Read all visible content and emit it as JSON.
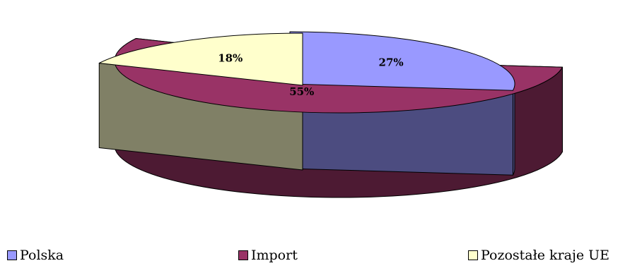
{
  "chart_data": {
    "type": "pie",
    "style": "3d-exploded",
    "slices": [
      {
        "label": "Polska",
        "value": 27,
        "display": "27%",
        "color": "#9999ff",
        "side_color": "#4c4c80"
      },
      {
        "label": "Import",
        "value": 55,
        "display": "55%",
        "color": "#993366",
        "side_color": "#4d1a33"
      },
      {
        "label": "Pozostałe kraje UE",
        "value": 18,
        "display": "18%",
        "color": "#ffffcc",
        "side_color": "#808066"
      }
    ],
    "legend_position": "bottom"
  }
}
